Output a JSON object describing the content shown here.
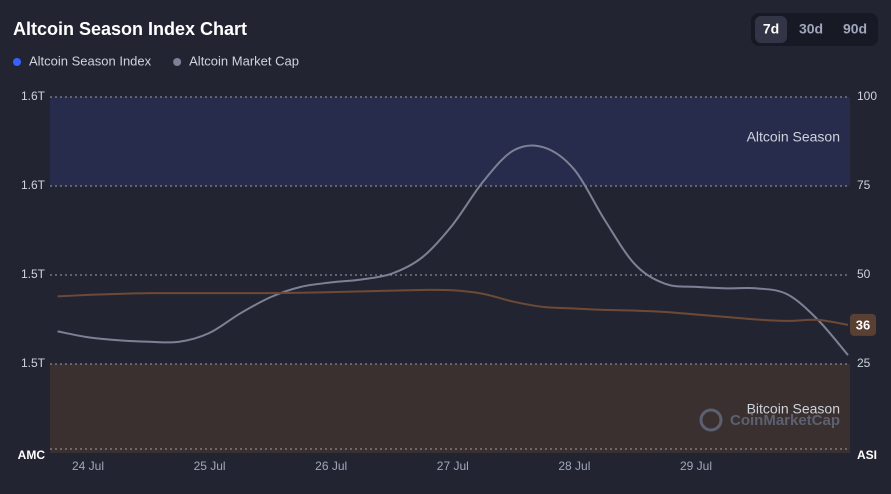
{
  "chart_data": {
    "type": "line",
    "title": "Altcoin Season Index Chart",
    "buttons": [
      "7d",
      "30d",
      "90d"
    ],
    "active_button": 0,
    "ylabel": "AMC",
    "y2label": "ASI",
    "watermark": "CoinMarketCap",
    "categories": [
      null,
      "24 Jul",
      null,
      null,
      null,
      "25 Jul",
      null,
      null,
      null,
      "26 Jul",
      null,
      null,
      null,
      "27 Jul",
      null,
      null,
      null,
      "28 Jul",
      null,
      null,
      null,
      "29 Jul",
      null,
      null,
      null,
      null,
      null
    ],
    "ylim": [
      1400000000000,
      1640000000000
    ],
    "yticks": [
      {
        "value": 1640000000000,
        "label": "1.6T"
      },
      {
        "value": 1580000000000,
        "label": "1.6T"
      },
      {
        "value": 1520000000000,
        "label": "1.5T"
      },
      {
        "value": 1460000000000,
        "label": "1.5T"
      }
    ],
    "y2lim": [
      0,
      100
    ],
    "y2ticks": [
      100,
      75,
      50,
      25
    ],
    "grid": true,
    "bands": [
      {
        "label": "Altcoin Season",
        "from": 75,
        "to": 100,
        "color": "#272c4c"
      },
      {
        "label": "Bitcoin Season",
        "from": 0,
        "to": 25,
        "color": "#3a302f"
      }
    ],
    "series": [
      {
        "name": "Altcoin Season Index",
        "color": "#6e4a36",
        "legend_color": "#3861fb",
        "axis": "y2",
        "values": [
          44,
          44.4,
          44.7,
          44.9,
          44.9,
          44.9,
          44.9,
          44.9,
          45,
          45.2,
          45.4,
          45.6,
          45.8,
          45.7,
          44.7,
          42.5,
          41,
          40.6,
          40.2,
          40,
          39.6,
          38.9,
          38.2,
          37.5,
          37.1,
          37.4,
          36
        ],
        "end_label": true
      },
      {
        "name": "Altcoin Market Cap",
        "color": "#7d8195",
        "legend_color": "#7d8195",
        "axis": "y",
        "values": [
          1482000000000,
          1478000000000,
          1476000000000,
          1475000000000,
          1475000000000,
          1481000000000,
          1494000000000,
          1505000000000,
          1512000000000,
          1515000000000,
          1517000000000,
          1521000000000,
          1532000000000,
          1554000000000,
          1583000000000,
          1604000000000,
          1606000000000,
          1591000000000,
          1557000000000,
          1527000000000,
          1514000000000,
          1512000000000,
          1511000000000,
          1511000000000,
          1507000000000,
          1490000000000,
          1466000000000
        ]
      }
    ]
  }
}
